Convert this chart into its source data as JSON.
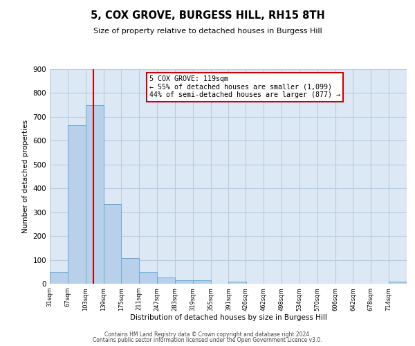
{
  "title": "5, COX GROVE, BURGESS HILL, RH15 8TH",
  "subtitle": "Size of property relative to detached houses in Burgess Hill",
  "xlabel": "Distribution of detached houses by size in Burgess Hill",
  "ylabel": "Number of detached properties",
  "bar_color": "#b8d0ea",
  "bar_edge_color": "#6aaad4",
  "background_color": "#ffffff",
  "plot_bg_color": "#dde8f5",
  "grid_color": "#b8ccdf",
  "bin_edges": [
    31,
    67,
    103,
    139,
    175,
    211,
    247,
    283,
    319,
    355,
    391,
    426,
    462,
    498,
    534,
    570,
    606,
    642,
    678,
    714,
    750
  ],
  "bar_heights": [
    50,
    665,
    750,
    335,
    108,
    50,
    25,
    14,
    14,
    0,
    10,
    0,
    0,
    0,
    0,
    0,
    0,
    0,
    0,
    10
  ],
  "property_size": 119,
  "vline_color": "#cc0000",
  "annotation_line1": "5 COX GROVE: 119sqm",
  "annotation_line2": "← 55% of detached houses are smaller (1,099)",
  "annotation_line3": "44% of semi-detached houses are larger (877) →",
  "annotation_box_color": "#cc0000",
  "ylim": [
    0,
    900
  ],
  "yticks": [
    0,
    100,
    200,
    300,
    400,
    500,
    600,
    700,
    800,
    900
  ],
  "footnote1": "Contains HM Land Registry data © Crown copyright and database right 2024.",
  "footnote2": "Contains public sector information licensed under the Open Government Licence v3.0."
}
